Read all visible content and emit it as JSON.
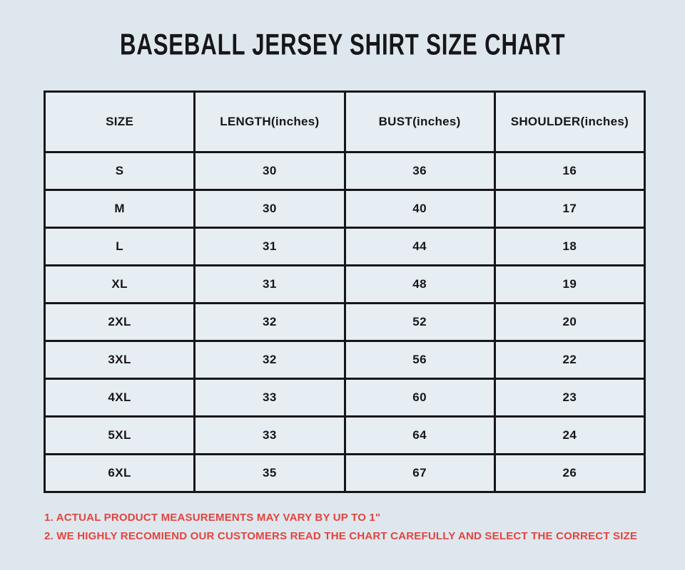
{
  "page": {
    "title": "BASEBALL JERSEY SHIRT SIZE CHART",
    "background_color": "#dfe7ee",
    "cell_background_color": "#e6edf3",
    "border_color": "#161618",
    "note_color": "#e0453f"
  },
  "table": {
    "columns": [
      "SIZE",
      "LENGTH(inches)",
      "BUST(inches)",
      "SHOULDER(inches)"
    ],
    "rows": [
      [
        "S",
        "30",
        "36",
        "16"
      ],
      [
        "M",
        "30",
        "40",
        "17"
      ],
      [
        "L",
        "31",
        "44",
        "18"
      ],
      [
        "XL",
        "31",
        "48",
        "19"
      ],
      [
        "2XL",
        "32",
        "52",
        "20"
      ],
      [
        "3XL",
        "32",
        "56",
        "22"
      ],
      [
        "4XL",
        "33",
        "60",
        "23"
      ],
      [
        "5XL",
        "33",
        "64",
        "24"
      ],
      [
        "6XL",
        "35",
        "67",
        "26"
      ]
    ]
  },
  "notes": [
    "1. ACTUAL PRODUCT MEASUREMENTS MAY VARY BY UP TO 1\"",
    "2. WE HIGHLY RECOMIEND OUR CUSTOMERS READ THE CHART CAREFULLY AND SELECT THE CORRECT SIZE"
  ]
}
